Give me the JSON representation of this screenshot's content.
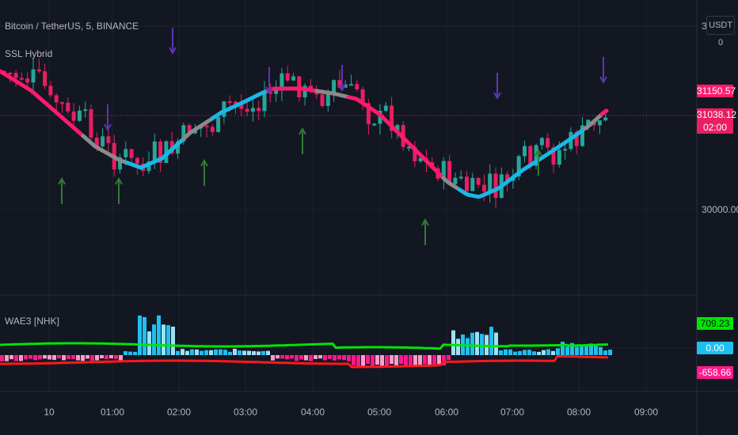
{
  "header": {
    "symbol": "Bitcoin / TetherUS, 5, BINANCE",
    "indicator": "SSL Hybrid",
    "lower_indicator": "WAE3 [NHK]",
    "currency_button": "USDT"
  },
  "price_axis": {
    "labels": [
      "3",
      "30000.00"
    ]
  },
  "badges": {
    "price_high": "31150.57",
    "price_current": "31038.12",
    "countdown": "02:00",
    "wae_signal": "709.23",
    "wae_zero": "0.00",
    "wae_neg": "-658.66"
  },
  "time_axis": [
    "10",
    "01:00",
    "02:00",
    "03:00",
    "04:00",
    "05:00",
    "06:00",
    "07:00",
    "08:00",
    "09:00"
  ],
  "colors": {
    "background": "#131722",
    "up_candle": "#26a69a",
    "down_candle": "#e91e63",
    "ssl_up": "#18b9e6",
    "ssl_down": "#ff1a6b",
    "ssl_neutral": "#8a8a8a",
    "buy_arrow": "#2e7d32",
    "sell_arrow": "#5e35b1",
    "wae_up": "#1ec0f0",
    "wae_up_light": "#9fe0f4",
    "wae_down": "#ff1a8c",
    "wae_down_light": "#ff9ec8",
    "signal_line": "#00e600",
    "deadzone_line": "#ff1a1a",
    "badge_green": "#00e600",
    "badge_blue": "#1ec0f0",
    "badge_pink": "#ff1a8c",
    "badge_red": "#ff1a6b"
  }
}
